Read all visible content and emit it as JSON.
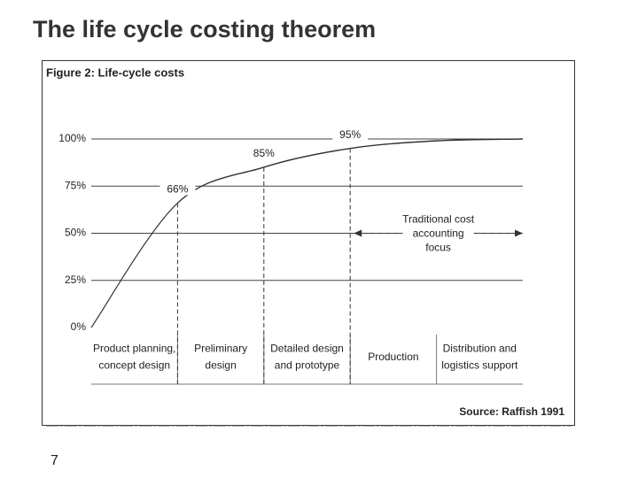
{
  "slide_title": "The life cycle costing theorem",
  "page_number": "7",
  "chart_data": {
    "type": "line",
    "title": "Figure 2: Life-cycle costs",
    "source": "Source: Raffish 1991",
    "categories": [
      "Product planning,\nconcept design",
      "Preliminary\ndesign",
      "Detailed design\nand prototype",
      "Production",
      "Distribution and\nlogistics support"
    ],
    "values": [
      66,
      85,
      95,
      99,
      100
    ],
    "value_labels": [
      "66%",
      "85%",
      "95%",
      null,
      null
    ],
    "color": "#333333",
    "ylim": [
      0,
      100
    ],
    "yticks": [
      {
        "value": 0,
        "label": "0%"
      },
      {
        "value": 25,
        "label": "25%"
      },
      {
        "value": 50,
        "label": "50%"
      },
      {
        "value": 75,
        "label": "75%"
      },
      {
        "value": 100,
        "label": "100%"
      }
    ],
    "grid": true,
    "annotation": "Traditional cost\naccounting\nfocus"
  }
}
